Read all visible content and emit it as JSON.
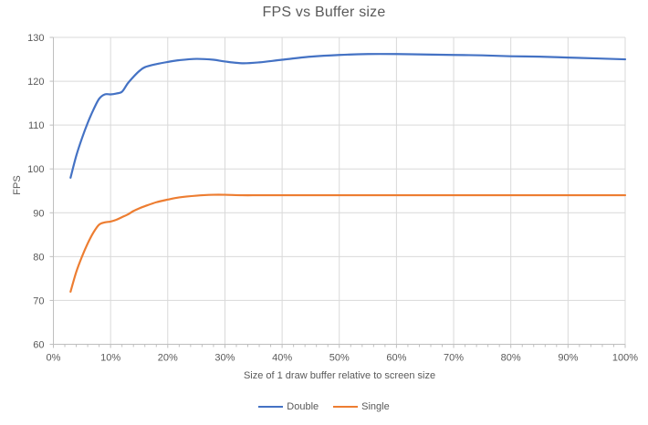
{
  "colors": {
    "series_double": "#4472C4",
    "series_single": "#ED7D31",
    "gridline": "#D9D9D9",
    "axis_line": "#BFBFBF",
    "tick_text": "#595959",
    "title_text": "#595959",
    "background": "#FFFFFF"
  },
  "chart_data": {
    "type": "line",
    "title": "FPS vs Buffer size",
    "xlabel": "Size of 1 draw buffer relative to screen size",
    "ylabel": "FPS",
    "xlim": [
      0,
      100
    ],
    "ylim": [
      60,
      130
    ],
    "grid": true,
    "smooth": true,
    "legend_position": "bottom",
    "x_ticks": [
      0,
      10,
      20,
      30,
      40,
      50,
      60,
      70,
      80,
      90,
      100
    ],
    "x_tick_labels": [
      "0%",
      "10%",
      "20%",
      "30%",
      "40%",
      "50%",
      "60%",
      "70%",
      "80%",
      "90%",
      "100%"
    ],
    "x_minor_tick_step": 2,
    "y_ticks": [
      60,
      70,
      80,
      90,
      100,
      110,
      120,
      130
    ],
    "y_tick_labels": [
      "60",
      "70",
      "80",
      "90",
      "100",
      "110",
      "120",
      "130"
    ],
    "x": [
      3,
      4,
      5,
      6,
      7,
      8,
      9,
      10,
      11,
      12,
      13,
      14,
      15,
      16,
      18,
      20,
      22,
      25,
      28,
      30,
      33,
      36,
      40,
      45,
      50,
      55,
      60,
      65,
      70,
      75,
      80,
      85,
      90,
      95,
      100
    ],
    "series": [
      {
        "name": "Double",
        "color": "#4472C4",
        "values": [
          98,
          103,
          107,
          110.5,
          113.5,
          116,
          117,
          117,
          117.2,
          117.6,
          119.5,
          121,
          122.3,
          123.2,
          123.9,
          124.4,
          124.8,
          125.1,
          124.9,
          124.5,
          124.1,
          124.3,
          124.9,
          125.6,
          126,
          126.2,
          126.2,
          126.1,
          126,
          125.9,
          125.7,
          125.6,
          125.4,
          125.2,
          125
        ]
      },
      {
        "name": "Single",
        "color": "#ED7D31",
        "values": [
          72,
          76.5,
          80,
          83,
          85.5,
          87.3,
          87.8,
          88,
          88.4,
          89,
          89.6,
          90.4,
          91,
          91.5,
          92.4,
          93,
          93.5,
          93.9,
          94.1,
          94.1,
          94,
          94,
          94,
          94,
          94,
          94,
          94,
          94,
          94,
          94,
          94,
          94,
          94,
          94,
          94
        ]
      }
    ]
  }
}
